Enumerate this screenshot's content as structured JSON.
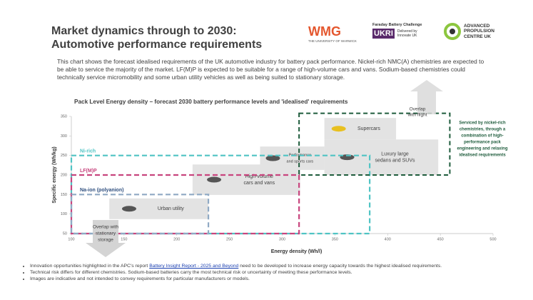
{
  "header": {
    "title": [
      "Market dynamics through to 2030:",
      "Automotive performance requirements"
    ]
  },
  "logos": {
    "wmg": "WMG",
    "warwick": "THE UNIVERSITY OF WARWICK",
    "faraday": "Faraday Battery Challenge",
    "ukri": "UKRI",
    "innovate": [
      "Delivered by",
      "Innovate UK"
    ],
    "apc": [
      "ADVANCED",
      "PROPULSION",
      "CENTRE UK"
    ]
  },
  "intro": "This chart shows the forecast idealised requirements of the UK automotive industry for battery pack performance.  Nickel-rich NMC(A) chemistries are expected to be able to service the majority of the market. LF(M)P is expected to be suitable for a range of high-volume cars and vans.  Sodium-based chemistries could technically service micromobility and some urban utility vehicles as well as being suited to stationary storage.",
  "bullets": [
    {
      "before": "Innovation opportunities highlighted in the APC's report ",
      "link": "Battery Insight Report - 2025 and Beyond",
      "after": " need to be developed to increase energy capacity towards the highest idealised requirements."
    },
    {
      "text": "Technical risk differs for different chemistries. Sodium-based batteries carry the most technical risk or uncertainty of meeting these performance levels."
    },
    {
      "text": "Images are indicative and not intended to convey requirements for particular manufacturers or models."
    }
  ],
  "chart_data": {
    "type": "region",
    "title": "Pack Level Energy density – forecast 2030 battery performance levels and 'idealised' requirements",
    "xlabel": "Energy density (Wh/l)",
    "ylabel": "Specific energy (Wh/kg)",
    "xlim": [
      100,
      500
    ],
    "ylim": [
      50,
      350
    ],
    "xticks": [
      100,
      150,
      200,
      250,
      300,
      350,
      400,
      450,
      500
    ],
    "yticks": [
      50,
      100,
      150,
      200,
      250,
      300,
      350
    ],
    "regions": [
      {
        "name": "Ni-rich",
        "color": "#4fc4c4",
        "x": [
          100,
          383
        ],
        "y": [
          50,
          250
        ]
      },
      {
        "name": "LF(M)P",
        "color": "#c8457e",
        "x": [
          100,
          316
        ],
        "y": [
          50,
          200
        ]
      },
      {
        "name": "Na-ion (polyanion)",
        "color": "#8fa9c4",
        "x": [
          100,
          230
        ],
        "y": [
          50,
          150
        ]
      }
    ],
    "segments": [
      {
        "label": [
          "Urban utility"
        ],
        "x": [
          136,
          230
        ],
        "y": [
          87,
          140
        ]
      },
      {
        "label": [
          "High-volume",
          "cars and vans"
        ],
        "x": [
          215,
          317
        ],
        "y": [
          149,
          227
        ]
      },
      {
        "label": [
          "Performance",
          "and sports cars"
        ],
        "x": [
          279,
          340
        ],
        "y": [
          213,
          273
        ]
      },
      {
        "label": [
          "Luxury large",
          "sedans and SUVs"
        ],
        "x": [
          340,
          448
        ],
        "y": [
          200,
          291
        ]
      },
      {
        "label": [
          "Supercars"
        ],
        "x": [
          340,
          408
        ],
        "y": [
          291,
          346
        ]
      }
    ],
    "ni_rich_box": {
      "color": "#1e5c3c",
      "x": [
        316,
        459
      ],
      "y": [
        200,
        358
      ],
      "text": [
        "Serviced by nickel-rich",
        "chemistries, through a",
        "combination of high-",
        "performance pack",
        "engineering and relaxing",
        "idealised requirements"
      ]
    },
    "overlap_flight": [
      "Overlap",
      "with flight"
    ],
    "overlap_storage": [
      "Overlap with",
      "stationary",
      "storage"
    ]
  }
}
